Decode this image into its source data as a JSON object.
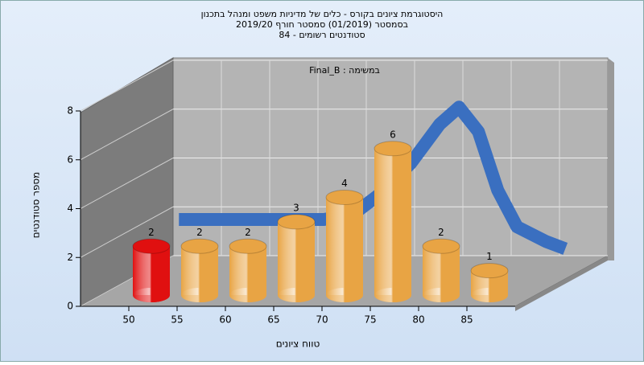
{
  "chart_data": {
    "type": "bar3d",
    "title": "היסטוגרמת ציונים בקורס - כלים של מדיניות משפט ומנהל בתכנון",
    "subtitle": "בסמסטר  (01/2019)  סמסטר חורף 2019/20",
    "subtitle2": "סטודנטים רשומים - 84",
    "annotation": "Final_B : במשימה",
    "ylabel": "מספר סטודנטים",
    "xlabel": "טווח ציונים",
    "x": [
      50,
      55,
      60,
      65,
      70,
      75,
      80,
      85
    ],
    "values": [
      2,
      2,
      2,
      3,
      4,
      6,
      2,
      1
    ],
    "colors": [
      "#e01010",
      "#e8a444",
      "#e8a444",
      "#e8a444",
      "#e8a444",
      "#e8a444",
      "#e8a444",
      "#e8a444"
    ],
    "curve": {
      "x": [
        48,
        52,
        56,
        60,
        63,
        66,
        69,
        72,
        75,
        77,
        79,
        81,
        83,
        86,
        88
      ],
      "values": [
        2,
        2,
        2,
        2,
        2,
        2.2,
        3.1,
        4.3,
        5.9,
        6.6,
        5.6,
        3.2,
        1.7,
        1.1,
        0.8
      ],
      "color": "#3a6fc0"
    },
    "xlim": [
      45,
      90
    ],
    "xticks": [
      50,
      55,
      60,
      65,
      70,
      75,
      80,
      85
    ],
    "ylim": [
      0,
      8
    ],
    "yticks": [
      0,
      2,
      4,
      6,
      8
    ],
    "grid": true
  }
}
